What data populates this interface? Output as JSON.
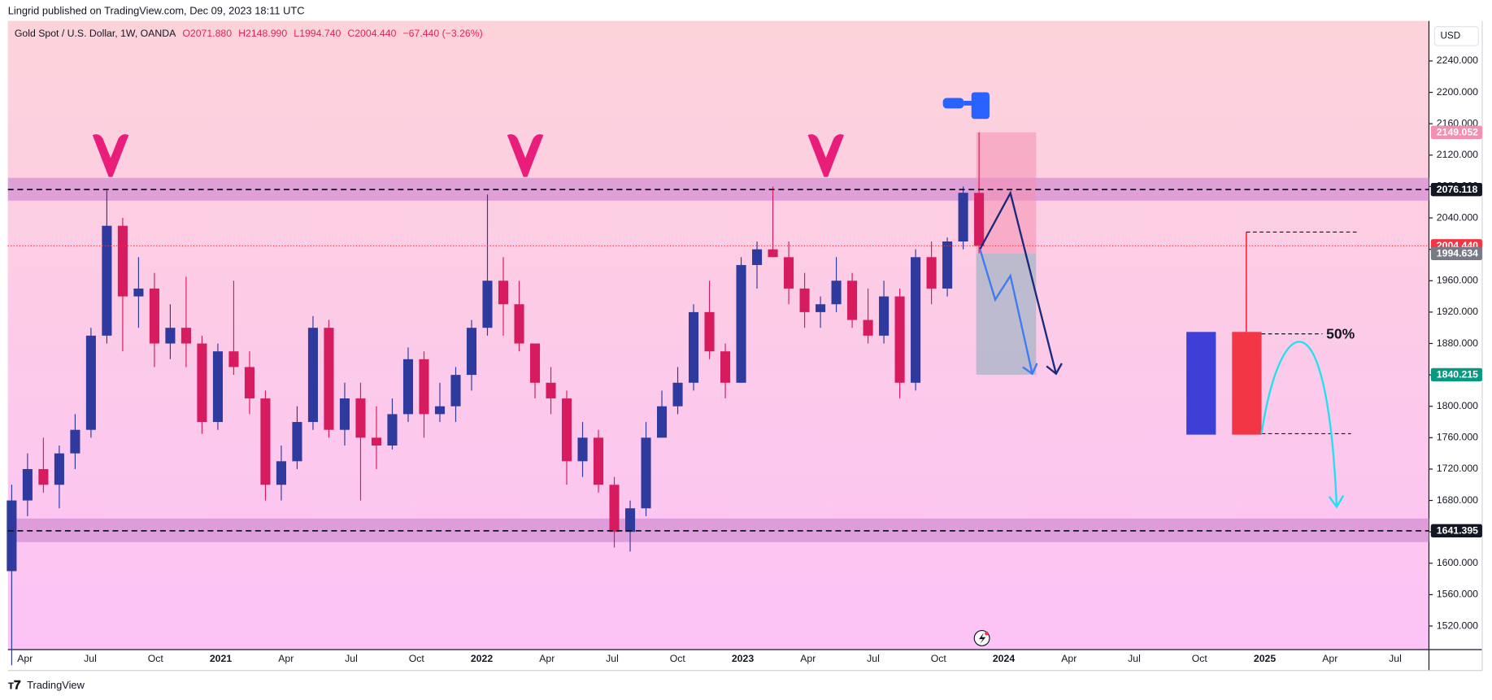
{
  "published": "Lingrid published on TradingView.com, Dec 09, 2023 18:11 UTC",
  "brand": "TradingView",
  "chart_data": {
    "type": "candlestick",
    "title": "Gold Spot / U.S. Dollar, 1W, OANDA",
    "header_values": [
      "O2071.880",
      "H2148.990",
      "L1994.740",
      "C2004.440",
      "−67.440 (−3.26%)"
    ],
    "currency": "USD",
    "annotation": "50%",
    "open": [
      1590,
      1680,
      1720,
      1700,
      1740,
      1770,
      1890,
      2030,
      1940,
      1950,
      1880,
      1900,
      1880,
      1780,
      1870,
      1850,
      1810,
      1700,
      1730,
      1780,
      1900,
      1770,
      1810,
      1760,
      1750,
      1790,
      1860,
      1790,
      1800,
      1840,
      1900,
      1960,
      1930,
      1880,
      1830,
      1810,
      1730,
      1760,
      1700,
      1640,
      1670,
      1760,
      1800,
      1830,
      1920,
      1870,
      1830,
      1980,
      2000,
      1990,
      1950,
      1920,
      1930,
      1960,
      1910,
      1890,
      1940,
      1830,
      1990,
      1950,
      2010,
      2071.88
    ],
    "high": [
      1700,
      1740,
      1760,
      1750,
      1790,
      1900,
      2075,
      2040,
      1990,
      1970,
      1930,
      1965,
      1890,
      1880,
      1960,
      1870,
      1820,
      1750,
      1800,
      1915,
      1910,
      1830,
      1830,
      1800,
      1810,
      1875,
      1870,
      1830,
      1850,
      1910,
      2070,
      1990,
      1960,
      1880,
      1850,
      1820,
      1780,
      1770,
      1710,
      1680,
      1780,
      1820,
      1850,
      1930,
      1960,
      1880,
      1990,
      2010,
      2080,
      2010,
      1970,
      1940,
      1990,
      1970,
      1950,
      1960,
      1950,
      2000,
      2010,
      2015,
      2080,
      2148.99
    ],
    "low": [
      1470,
      1660,
      1690,
      1670,
      1720,
      1760,
      1880,
      1870,
      1900,
      1850,
      1860,
      1850,
      1765,
      1770,
      1840,
      1790,
      1680,
      1680,
      1720,
      1770,
      1760,
      1750,
      1680,
      1720,
      1745,
      1780,
      1760,
      1780,
      1780,
      1820,
      1890,
      1890,
      1870,
      1810,
      1790,
      1700,
      1710,
      1690,
      1620,
      1615,
      1660,
      1760,
      1790,
      1820,
      1860,
      1810,
      1830,
      1950,
      1990,
      1930,
      1900,
      1900,
      1920,
      1900,
      1880,
      1880,
      1810,
      1820,
      1930,
      1940,
      2000,
      1994.74
    ],
    "close": [
      1680,
      1720,
      1700,
      1740,
      1770,
      1890,
      2030,
      1940,
      1950,
      1880,
      1900,
      1880,
      1780,
      1870,
      1850,
      1810,
      1700,
      1730,
      1780,
      1900,
      1770,
      1810,
      1760,
      1750,
      1790,
      1860,
      1790,
      1800,
      1840,
      1900,
      1960,
      1930,
      1880,
      1830,
      1810,
      1730,
      1760,
      1700,
      1640,
      1670,
      1760,
      1800,
      1830,
      1920,
      1870,
      1830,
      1980,
      2000,
      1990,
      1950,
      1920,
      1930,
      1960,
      1910,
      1890,
      1940,
      1830,
      1990,
      1950,
      2010,
      2072,
      2004.44
    ],
    "up_color": "#2e3a9e",
    "down_color": "#d61c5f",
    "ylim": [
      1490,
      2291
    ],
    "yticks": [
      {
        "value": 1520,
        "label": "1520.000"
      },
      {
        "value": 1560,
        "label": "1560.000"
      },
      {
        "value": 1600,
        "label": "1600.000"
      },
      {
        "value": 1640,
        "label": "1640.000"
      },
      {
        "value": 1680,
        "label": "1680.000"
      },
      {
        "value": 1720,
        "label": "1720.000"
      },
      {
        "value": 1760,
        "label": "1760.000"
      },
      {
        "value": 1800,
        "label": "1800.000"
      },
      {
        "value": 1840,
        "label": "1840.000"
      },
      {
        "value": 1880,
        "label": "1880.000"
      },
      {
        "value": 1920,
        "label": "1920.000"
      },
      {
        "value": 1960,
        "label": "1960.000"
      },
      {
        "value": 2000,
        "label": "2000.000"
      },
      {
        "value": 2040,
        "label": "2040.000"
      },
      {
        "value": 2080,
        "label": "2080.000"
      },
      {
        "value": 2120,
        "label": "2120.000"
      },
      {
        "value": 2160,
        "label": "2160.000"
      },
      {
        "value": 2200,
        "label": "2200.000"
      },
      {
        "value": 2240,
        "label": "2240.000"
      }
    ],
    "xticks": [
      "Apr",
      "Jul",
      "Oct",
      "2021",
      "Apr",
      "Jul",
      "Oct",
      "2022",
      "Apr",
      "Jul",
      "Oct",
      "2023",
      "Apr",
      "Jul",
      "Oct",
      "2024",
      "Apr",
      "Jul",
      "Oct",
      "2025",
      "Apr",
      "Jul"
    ],
    "zones": [
      {
        "from": 2062,
        "to": 2091,
        "color": "#d48fd3"
      },
      {
        "from": 1627,
        "to": 1657,
        "color": "#d48fd3"
      }
    ],
    "price_labels": [
      {
        "value": 2149.052,
        "label": "2149.052",
        "color": "#f48fb1",
        "line": "none"
      },
      {
        "value": 2076.118,
        "label": "2076.118",
        "color": "#131722",
        "line": "dashed"
      },
      {
        "value": 2004.44,
        "label": "2004.440",
        "color": "#f23645",
        "line": "dotted"
      },
      {
        "value": 1994.634,
        "label": "1994.634",
        "color": "#787b86",
        "line": "none"
      },
      {
        "value": 1840.215,
        "label": "1840.215",
        "color": "#089981",
        "line": "none"
      },
      {
        "value": 1641.395,
        "label": "1641.395",
        "color": "#131722",
        "line": "dashed"
      }
    ]
  }
}
